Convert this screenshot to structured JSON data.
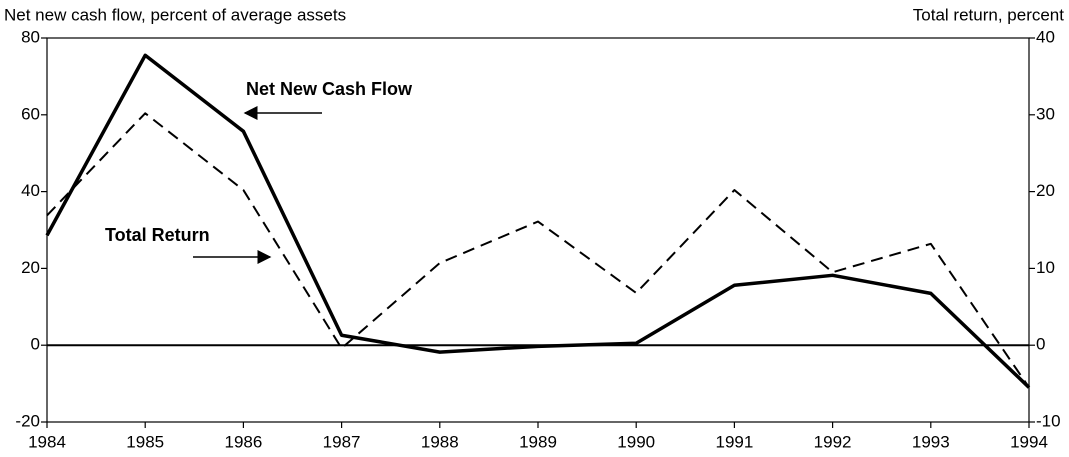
{
  "chart_data": {
    "type": "line",
    "y_label": "Net new cash flow, percent of average assets",
    "y2_label": "Total return, percent",
    "x": [
      1984,
      1985,
      1986,
      1987,
      1988,
      1989,
      1990,
      1991,
      1992,
      1993,
      1994
    ],
    "xlim": [
      1984,
      1994
    ],
    "xticks": [
      1984,
      1985,
      1986,
      1987,
      1988,
      1989,
      1990,
      1991,
      1992,
      1993,
      1994
    ],
    "ylim": [
      -20,
      80
    ],
    "yticks": [
      -20,
      0,
      20,
      40,
      60,
      80
    ],
    "y2lim": [
      -10,
      40
    ],
    "y2ticks": [
      -10,
      0,
      10,
      20,
      30,
      40
    ],
    "series": [
      {
        "name": "Net New Cash Flow",
        "color": "#000000",
        "dash": false,
        "values": [
          28.6,
          75.5,
          55.7,
          2.6,
          -1.8,
          -0.3,
          0.5,
          15.6,
          18.2,
          13.5,
          -11
        ]
      },
      {
        "name": "Total Return",
        "color": "#000000",
        "dash": true,
        "axis": "y2",
        "values": [
          16.9,
          30.2,
          20.2,
          -0.4,
          10.7,
          16.1,
          6.8,
          20.2,
          9.5,
          13.2,
          -5.5
        ]
      }
    ]
  }
}
